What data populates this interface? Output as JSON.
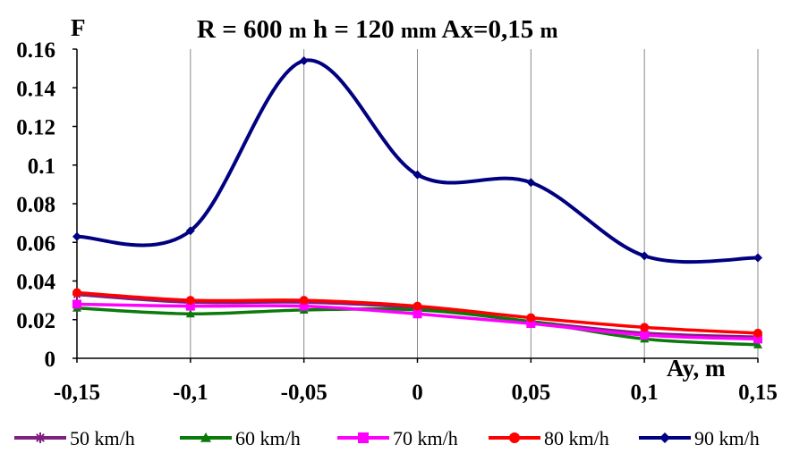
{
  "chart_data": {
    "type": "line",
    "title": "R = 600 m  h = 120 mm Ax=0,15 m",
    "title_parts": [
      "R = 600 ",
      "m",
      "  h = 120 ",
      "mm",
      " Ax=0,15 ",
      "m"
    ],
    "ylabel": "F",
    "xlabel": "Ay, m",
    "x": [
      -0.15,
      -0.1,
      -0.05,
      0,
      0.05,
      0.1,
      0.15
    ],
    "x_tick_labels": [
      "-0,15",
      "-0,1",
      "-0,05",
      "0",
      "0,05",
      "0,1",
      "0,15"
    ],
    "y_tick_labels": [
      "0",
      "0.02",
      "0.04",
      "0.06",
      "0.08",
      "0.1",
      "0.12",
      "0.14",
      "0.16"
    ],
    "ylim": [
      0,
      0.16
    ],
    "xlim": [
      -0.15,
      0.15
    ],
    "grid": "vertical",
    "legend_position": "bottom",
    "series": [
      {
        "name": "50 km/h",
        "color": "#7f1f7f",
        "marker": "star",
        "values": [
          0.033,
          0.029,
          0.029,
          0.026,
          0.019,
          0.013,
          0.011
        ]
      },
      {
        "name": "60 km/h",
        "color": "#0a7a0a",
        "marker": "triangle",
        "values": [
          0.026,
          0.023,
          0.025,
          0.025,
          0.019,
          0.01,
          0.007
        ]
      },
      {
        "name": "70 km/h",
        "color": "#ff00ff",
        "marker": "square",
        "values": [
          0.028,
          0.027,
          0.027,
          0.023,
          0.018,
          0.012,
          0.01
        ]
      },
      {
        "name": "80 km/h",
        "color": "#ff0000",
        "marker": "circle",
        "values": [
          0.034,
          0.03,
          0.03,
          0.027,
          0.021,
          0.016,
          0.013
        ]
      },
      {
        "name": "90 km/h",
        "color": "#000080",
        "marker": "diamond",
        "values": [
          0.063,
          0.066,
          0.154,
          0.095,
          0.091,
          0.053,
          0.052
        ]
      }
    ]
  }
}
